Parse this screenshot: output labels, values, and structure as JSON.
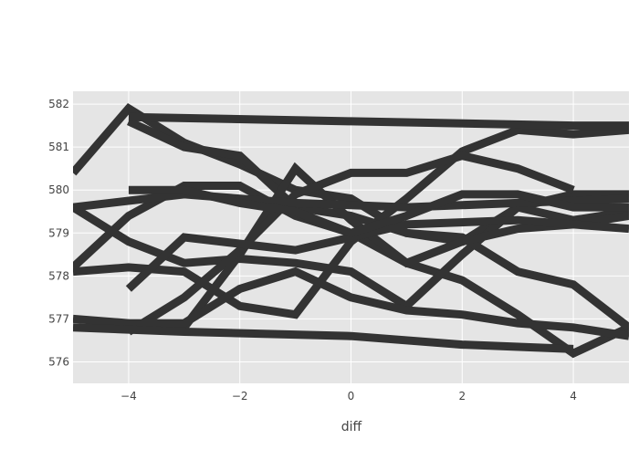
{
  "chart_data": {
    "type": "line",
    "title": "",
    "xlabel": "diff",
    "ylabel": "",
    "xlim": [
      -5,
      5
    ],
    "ylim": [
      575.5,
      582.3
    ],
    "grid": true,
    "legend": "none",
    "x_ticks": [
      -4,
      -2,
      0,
      2,
      4
    ],
    "x_tick_labels": [
      "−4",
      "−2",
      "0",
      "2",
      "4"
    ],
    "y_ticks": [
      576,
      577,
      578,
      579,
      580,
      581,
      582
    ],
    "y_tick_labels": [
      "576",
      "577",
      "578",
      "579",
      "580",
      "581",
      "582"
    ],
    "colors": {
      "panel": "#e5e5e5",
      "grid": "#ffffff",
      "series": "#333333",
      "text": "#444444"
    },
    "series": [
      {
        "values": [
          [
            -5,
            580.4
          ],
          [
            -4,
            581.9
          ],
          [
            -3,
            581.1
          ],
          [
            -2,
            580.6
          ],
          [
            -1,
            580.0
          ],
          [
            0,
            579.8
          ],
          [
            1,
            579.0
          ],
          [
            2,
            578.8
          ],
          [
            3,
            579.6
          ],
          [
            4,
            579.9
          ],
          [
            5,
            579.9
          ]
        ]
      },
      {
        "values": [
          [
            -5,
            578.2
          ],
          [
            -4,
            579.4
          ],
          [
            -3,
            580.1
          ],
          [
            -2,
            580.1
          ],
          [
            -1,
            579.4
          ],
          [
            0,
            579.0
          ],
          [
            1,
            578.3
          ],
          [
            2,
            577.9
          ],
          [
            3,
            577.1
          ],
          [
            4,
            576.2
          ],
          [
            5,
            576.8
          ]
        ]
      },
      {
        "values": [
          [
            -5,
            579.6
          ],
          [
            -4,
            578.8
          ],
          [
            -3,
            578.3
          ],
          [
            -2,
            578.4
          ],
          [
            -1,
            578.3
          ],
          [
            0,
            578.1
          ],
          [
            1,
            577.3
          ],
          [
            2,
            578.5
          ],
          [
            3,
            579.6
          ],
          [
            4,
            579.3
          ],
          [
            5,
            579.5
          ]
        ]
      },
      {
        "values": [
          [
            -5,
            578.1
          ],
          [
            -4,
            578.2
          ],
          [
            -3,
            578.1
          ],
          [
            -2,
            577.3
          ],
          [
            -1,
            577.1
          ],
          [
            0,
            578.8
          ],
          [
            1,
            579.8
          ],
          [
            2,
            580.9
          ],
          [
            3,
            581.4
          ],
          [
            4,
            581.3
          ],
          [
            5,
            581.4
          ]
        ]
      },
      {
        "values": [
          [
            -4,
            581.6
          ],
          [
            -3,
            581.0
          ],
          [
            -2,
            580.8
          ],
          [
            -1,
            579.6
          ],
          [
            0,
            579.4
          ],
          [
            1,
            579.0
          ],
          [
            2,
            578.9
          ],
          [
            3,
            578.1
          ],
          [
            4,
            577.8
          ],
          [
            5,
            576.8
          ]
        ]
      },
      {
        "values": [
          [
            -4,
            576.8
          ],
          [
            -3,
            576.8
          ],
          [
            -2,
            578.5
          ],
          [
            -1,
            580.5
          ],
          [
            0,
            579.3
          ],
          [
            1,
            578.3
          ],
          [
            2,
            578.8
          ],
          [
            3,
            579.1
          ],
          [
            4,
            579.2
          ],
          [
            5,
            579.4
          ]
        ]
      },
      {
        "values": [
          [
            -4,
            576.7
          ],
          [
            -3,
            577.5
          ],
          [
            -2,
            578.6
          ],
          [
            -1,
            579.9
          ],
          [
            0,
            580.4
          ],
          [
            1,
            580.4
          ],
          [
            2,
            580.8
          ],
          [
            3,
            580.5
          ],
          [
            4,
            580.0
          ]
        ]
      },
      {
        "values": [
          [
            -5,
            577.0
          ],
          [
            -4,
            576.9
          ],
          [
            -3,
            576.9
          ],
          [
            -2,
            577.7
          ],
          [
            -1,
            578.1
          ],
          [
            0,
            577.5
          ],
          [
            1,
            577.2
          ],
          [
            2,
            577.1
          ],
          [
            3,
            576.9
          ],
          [
            4,
            576.8
          ],
          [
            5,
            576.6
          ]
        ]
      },
      {
        "values": [
          [
            -5,
            576.8
          ],
          [
            -3,
            576.7
          ],
          [
            0,
            576.6
          ],
          [
            2,
            576.4
          ],
          [
            4,
            576.3
          ]
        ]
      },
      {
        "values": [
          [
            -4,
            577.7
          ],
          [
            -3,
            578.9
          ],
          [
            -1,
            578.6
          ],
          [
            1,
            579.2
          ],
          [
            3,
            579.3
          ],
          [
            5,
            579.1
          ]
        ]
      },
      {
        "values": [
          [
            -5,
            579.6
          ],
          [
            -3,
            579.9
          ],
          [
            -1,
            579.7
          ],
          [
            1,
            579.6
          ],
          [
            3,
            579.7
          ],
          [
            5,
            579.8
          ]
        ]
      },
      {
        "values": [
          [
            -4,
            580.0
          ],
          [
            -3,
            580.0
          ],
          [
            -2,
            579.7
          ],
          [
            -1,
            579.5
          ],
          [
            0,
            579.0
          ],
          [
            1,
            579.4
          ],
          [
            2,
            579.9
          ],
          [
            3,
            579.9
          ],
          [
            4,
            579.6
          ],
          [
            5,
            579.6
          ]
        ]
      },
      {
        "values": [
          [
            -4,
            581.7
          ],
          [
            0,
            581.6
          ],
          [
            4,
            581.5
          ],
          [
            5,
            581.5
          ]
        ]
      }
    ]
  }
}
